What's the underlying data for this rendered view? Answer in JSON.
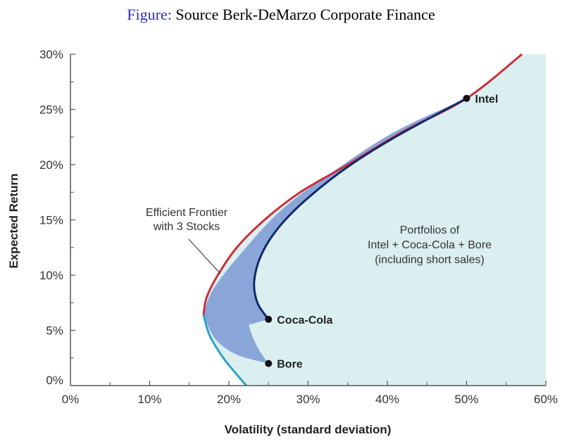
{
  "caption": {
    "prefix": "Figure:",
    "text": "Source Berk-DeMarzo Corporate Finance"
  },
  "chart_data": {
    "type": "line",
    "xlabel": "Volatility (standard deviation)",
    "ylabel": "Expected Return",
    "xlim": [
      0,
      60
    ],
    "ylim": [
      0,
      30
    ],
    "x_ticks": [
      "0%",
      "10%",
      "20%",
      "30%",
      "40%",
      "50%",
      "60%"
    ],
    "y_ticks": [
      "0%",
      "5%",
      "10%",
      "15%",
      "20%",
      "25%",
      "30%"
    ],
    "grid": false,
    "stocks": [
      {
        "name": "Intel",
        "x": 50,
        "y": 26
      },
      {
        "name": "Coca-Cola",
        "x": 25,
        "y": 6
      },
      {
        "name": "Bore",
        "x": 25,
        "y": 2
      }
    ],
    "series": [
      {
        "role": "efficient frontier",
        "color": "#c8303a",
        "points": [
          [
            16.8,
            6.4
          ],
          [
            17.2,
            8.0
          ],
          [
            18.6,
            10.0
          ],
          [
            21.0,
            12.5
          ],
          [
            24.5,
            15.0
          ],
          [
            29.0,
            17.5
          ],
          [
            35.0,
            20.0
          ],
          [
            42.0,
            23.0
          ],
          [
            50.0,
            26.0
          ],
          [
            57.0,
            30.0
          ]
        ]
      },
      {
        "role": "inefficient frontier",
        "color": "#2aa3c8",
        "points": [
          [
            16.8,
            6.4
          ],
          [
            17.6,
            4.5
          ],
          [
            19.3,
            2.5
          ],
          [
            21.0,
            1.0
          ],
          [
            22.2,
            0.0
          ]
        ]
      },
      {
        "role": "Intel + Coca-Cola combinations",
        "color": "#0f2a6a",
        "points": [
          [
            25.0,
            6.0
          ],
          [
            23.6,
            7.5
          ],
          [
            23.2,
            9.5
          ],
          [
            24.2,
            12.0
          ],
          [
            26.5,
            14.5
          ],
          [
            30.0,
            17.0
          ],
          [
            35.0,
            19.8
          ],
          [
            41.0,
            22.5
          ],
          [
            50.0,
            26.0
          ]
        ]
      }
    ],
    "regions": [
      {
        "role": "portfolios of all three stocks",
        "color": "#dbeff0"
      },
      {
        "role": "Intel + Coca-Cola + Bore combinations without short sales",
        "color": "#8aa6d9"
      }
    ],
    "annotations": [
      {
        "lines": [
          "Efficient Frontier",
          "with 3 Stocks"
        ]
      },
      {
        "lines": [
          "Portfolios of",
          "Intel + Coca-Cola + Bore",
          "(including short sales)"
        ]
      }
    ]
  },
  "colors": {
    "axis": "#555555",
    "dot": "#111111"
  }
}
